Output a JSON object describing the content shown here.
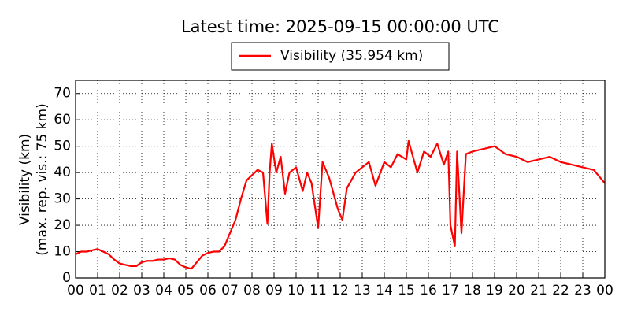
{
  "chart_data": {
    "type": "line",
    "title": "Latest time: 2025-09-15 00:00:00 UTC",
    "ylabel": [
      "Visibility (km)",
      "(max. rep. vis.: 75 km)"
    ],
    "series": [
      {
        "name": "Visibility (35.954 km)",
        "color": "#ff0000",
        "x": [
          0,
          0.25,
          0.5,
          0.75,
          1,
          1.25,
          1.5,
          1.75,
          2,
          2.25,
          2.5,
          2.75,
          3,
          3.25,
          3.5,
          3.75,
          4,
          4.25,
          4.5,
          4.75,
          5,
          5.25,
          5.5,
          5.75,
          6,
          6.25,
          6.5,
          6.75,
          7,
          7.25,
          7.5,
          7.75,
          8,
          8.25,
          8.5,
          8.7,
          8.8,
          8.9,
          9.1,
          9.3,
          9.5,
          9.7,
          10,
          10.3,
          10.5,
          10.7,
          11,
          11.2,
          11.5,
          11.9,
          12.1,
          12.3,
          12.7,
          13,
          13.3,
          13.6,
          14,
          14.3,
          14.6,
          15,
          15.1,
          15.5,
          15.8,
          16.1,
          16.4,
          16.7,
          16.9,
          17,
          17.2,
          17.3,
          17.5,
          17.7,
          18,
          18.5,
          19,
          19.5,
          20,
          20.5,
          21,
          21.5,
          22,
          22.5,
          23,
          23.5,
          24
        ],
        "values": [
          9,
          10,
          10,
          10.5,
          11,
          10,
          9,
          7,
          5.5,
          5,
          4.5,
          4.5,
          6,
          6.5,
          6.5,
          7,
          7,
          7.5,
          7,
          5,
          4,
          3.5,
          6,
          8.5,
          9.5,
          10,
          10,
          12,
          17,
          22,
          30,
          37,
          39,
          41,
          40,
          20.5,
          40,
          51,
          40,
          46,
          32,
          40,
          42,
          33,
          40,
          36,
          19,
          44,
          38,
          26,
          22,
          34,
          40,
          42,
          44,
          35,
          44,
          42,
          47,
          45,
          52,
          40,
          48,
          46,
          51,
          43,
          48,
          20,
          12,
          48,
          17,
          47,
          48,
          49,
          50,
          47,
          46,
          44,
          45,
          46,
          44,
          43,
          42,
          41,
          35.954
        ]
      }
    ],
    "xlim": [
      0,
      24
    ],
    "ylim": [
      0,
      75
    ],
    "xticks": [
      {
        "value": 0,
        "label": "00"
      },
      {
        "value": 1,
        "label": "01"
      },
      {
        "value": 2,
        "label": "02"
      },
      {
        "value": 3,
        "label": "03"
      },
      {
        "value": 4,
        "label": "04"
      },
      {
        "value": 5,
        "label": "05"
      },
      {
        "value": 6,
        "label": "06"
      },
      {
        "value": 7,
        "label": "07"
      },
      {
        "value": 8,
        "label": "08"
      },
      {
        "value": 9,
        "label": "09"
      },
      {
        "value": 10,
        "label": "10"
      },
      {
        "value": 11,
        "label": "11"
      },
      {
        "value": 12,
        "label": "12"
      },
      {
        "value": 13,
        "label": "13"
      },
      {
        "value": 14,
        "label": "14"
      },
      {
        "value": 15,
        "label": "15"
      },
      {
        "value": 16,
        "label": "16"
      },
      {
        "value": 17,
        "label": "17"
      },
      {
        "value": 18,
        "label": "18"
      },
      {
        "value": 19,
        "label": "19"
      },
      {
        "value": 20,
        "label": "20"
      },
      {
        "value": 21,
        "label": "21"
      },
      {
        "value": 22,
        "label": "22"
      },
      {
        "value": 23,
        "label": "23"
      },
      {
        "value": 24,
        "label": "00"
      }
    ],
    "yticks": [
      0,
      10,
      20,
      30,
      40,
      50,
      60,
      70
    ],
    "grid": true
  }
}
